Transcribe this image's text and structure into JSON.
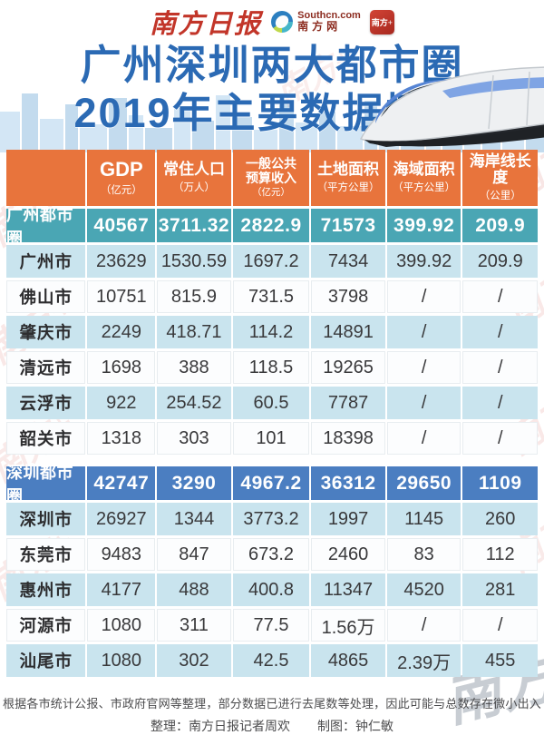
{
  "masthead": {
    "paper_name": "南方日报",
    "southcn_domain": "Southcn.com",
    "southcn_name": "南方网",
    "nanfang_plus": "南方+"
  },
  "title": {
    "line1": "广州深圳两大都市圈",
    "line2": "2019年主要数据情况"
  },
  "chart_data": {
    "type": "table",
    "title": "广州深圳两大都市圈2019年主要数据情况",
    "columns": [
      {
        "label": "",
        "unit": ""
      },
      {
        "label": "GDP",
        "unit": "（亿元）"
      },
      {
        "label": "常住人口",
        "unit": "（万人）"
      },
      {
        "label": "一般公共预算收入",
        "unit": "（亿元）"
      },
      {
        "label": "土地面积",
        "unit": "（平方公里）"
      },
      {
        "label": "海域面积",
        "unit": "（平方公里）"
      },
      {
        "label": "海岸线长度",
        "unit": "（公里）"
      }
    ],
    "sections": [
      {
        "name": "广州都市圈",
        "color_key": "gz_section_bg",
        "values": [
          "40567",
          "3711.32",
          "2822.9",
          "71573",
          "399.92",
          "209.9"
        ],
        "cities": [
          {
            "name": "广州市",
            "values": [
              "23629",
              "1530.59",
              "1697.2",
              "7434",
              "399.92",
              "209.9"
            ]
          },
          {
            "name": "佛山市",
            "values": [
              "10751",
              "815.9",
              "731.5",
              "3798",
              "/",
              "/"
            ]
          },
          {
            "name": "肇庆市",
            "values": [
              "2249",
              "418.71",
              "114.2",
              "14891",
              "/",
              "/"
            ]
          },
          {
            "name": "清远市",
            "values": [
              "1698",
              "388",
              "118.5",
              "19265",
              "/",
              "/"
            ]
          },
          {
            "name": "云浮市",
            "values": [
              "922",
              "254.52",
              "60.5",
              "7787",
              "/",
              "/"
            ]
          },
          {
            "name": "韶关市",
            "values": [
              "1318",
              "303",
              "101",
              "18398",
              "/",
              "/"
            ]
          }
        ]
      },
      {
        "name": "深圳都市圈",
        "color_key": "sz_section_bg",
        "values": [
          "42747",
          "3290",
          "4967.2",
          "36312",
          "29650",
          "1109"
        ],
        "cities": [
          {
            "name": "深圳市",
            "values": [
              "26927",
              "1344",
              "3773.2",
              "1997",
              "1145",
              "260"
            ]
          },
          {
            "name": "东莞市",
            "values": [
              "9483",
              "847",
              "673.2",
              "2460",
              "83",
              "112"
            ]
          },
          {
            "name": "惠州市",
            "values": [
              "4177",
              "488",
              "400.8",
              "11347",
              "4520",
              "281"
            ]
          },
          {
            "name": "河源市",
            "values": [
              "1080",
              "311",
              "77.5",
              "1.56万",
              "/",
              "/"
            ]
          },
          {
            "name": "汕尾市",
            "values": [
              "1080",
              "302",
              "42.5",
              "4865",
              "2.39万",
              "455"
            ]
          }
        ]
      }
    ]
  },
  "footer": {
    "note": "根据各市统计公报、市政府官网等整理，部分数据已进行去尾数等处理，因此可能与总数存在微小出入",
    "credit_left": "整理：南方日报记者周欢",
    "credit_right": "制图：钟仁敏"
  },
  "watermark_text": "南方+",
  "colors": {
    "header_bg": "#E8743C",
    "gz_section_bg": "#4AA6B4",
    "sz_section_bg": "#4B7EC1",
    "row_tint_bg": "#C9E4EE",
    "row_white_bg": "#FCFDFE",
    "title_blue": "#2B6AB4",
    "brand_red": "#C23529",
    "text_dark": "#39393B",
    "skyline_blue": "#CFE3F2"
  }
}
